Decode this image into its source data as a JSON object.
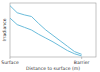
{
  "chart_data": {
    "type": "line",
    "x_label": "Distance to surface (m)",
    "y_label": "Irradiance",
    "x": [
      0,
      1,
      2,
      3,
      4,
      5,
      6,
      7,
      8,
      9,
      10
    ],
    "series": [
      {
        "name": null,
        "color": "#5ab4d6",
        "values": [
          0.95,
          0.82,
          0.78,
          0.75,
          0.62,
          0.5,
          0.4,
          0.3,
          0.2,
          0.1,
          0.05
        ]
      },
      {
        "name": null,
        "color": "#5ab4d6",
        "values": [
          0.72,
          0.6,
          0.55,
          0.5,
          0.42,
          0.35,
          0.28,
          0.2,
          0.12,
          0.06,
          0.02
        ]
      }
    ],
    "xlim": [
      0,
      12
    ],
    "ylim": [
      0,
      1
    ],
    "xticks": [
      {
        "value": 0,
        "label": "Surface"
      },
      {
        "value": 10,
        "label": "Barrier"
      }
    ],
    "tick_labels": "x",
    "grid": false
  }
}
